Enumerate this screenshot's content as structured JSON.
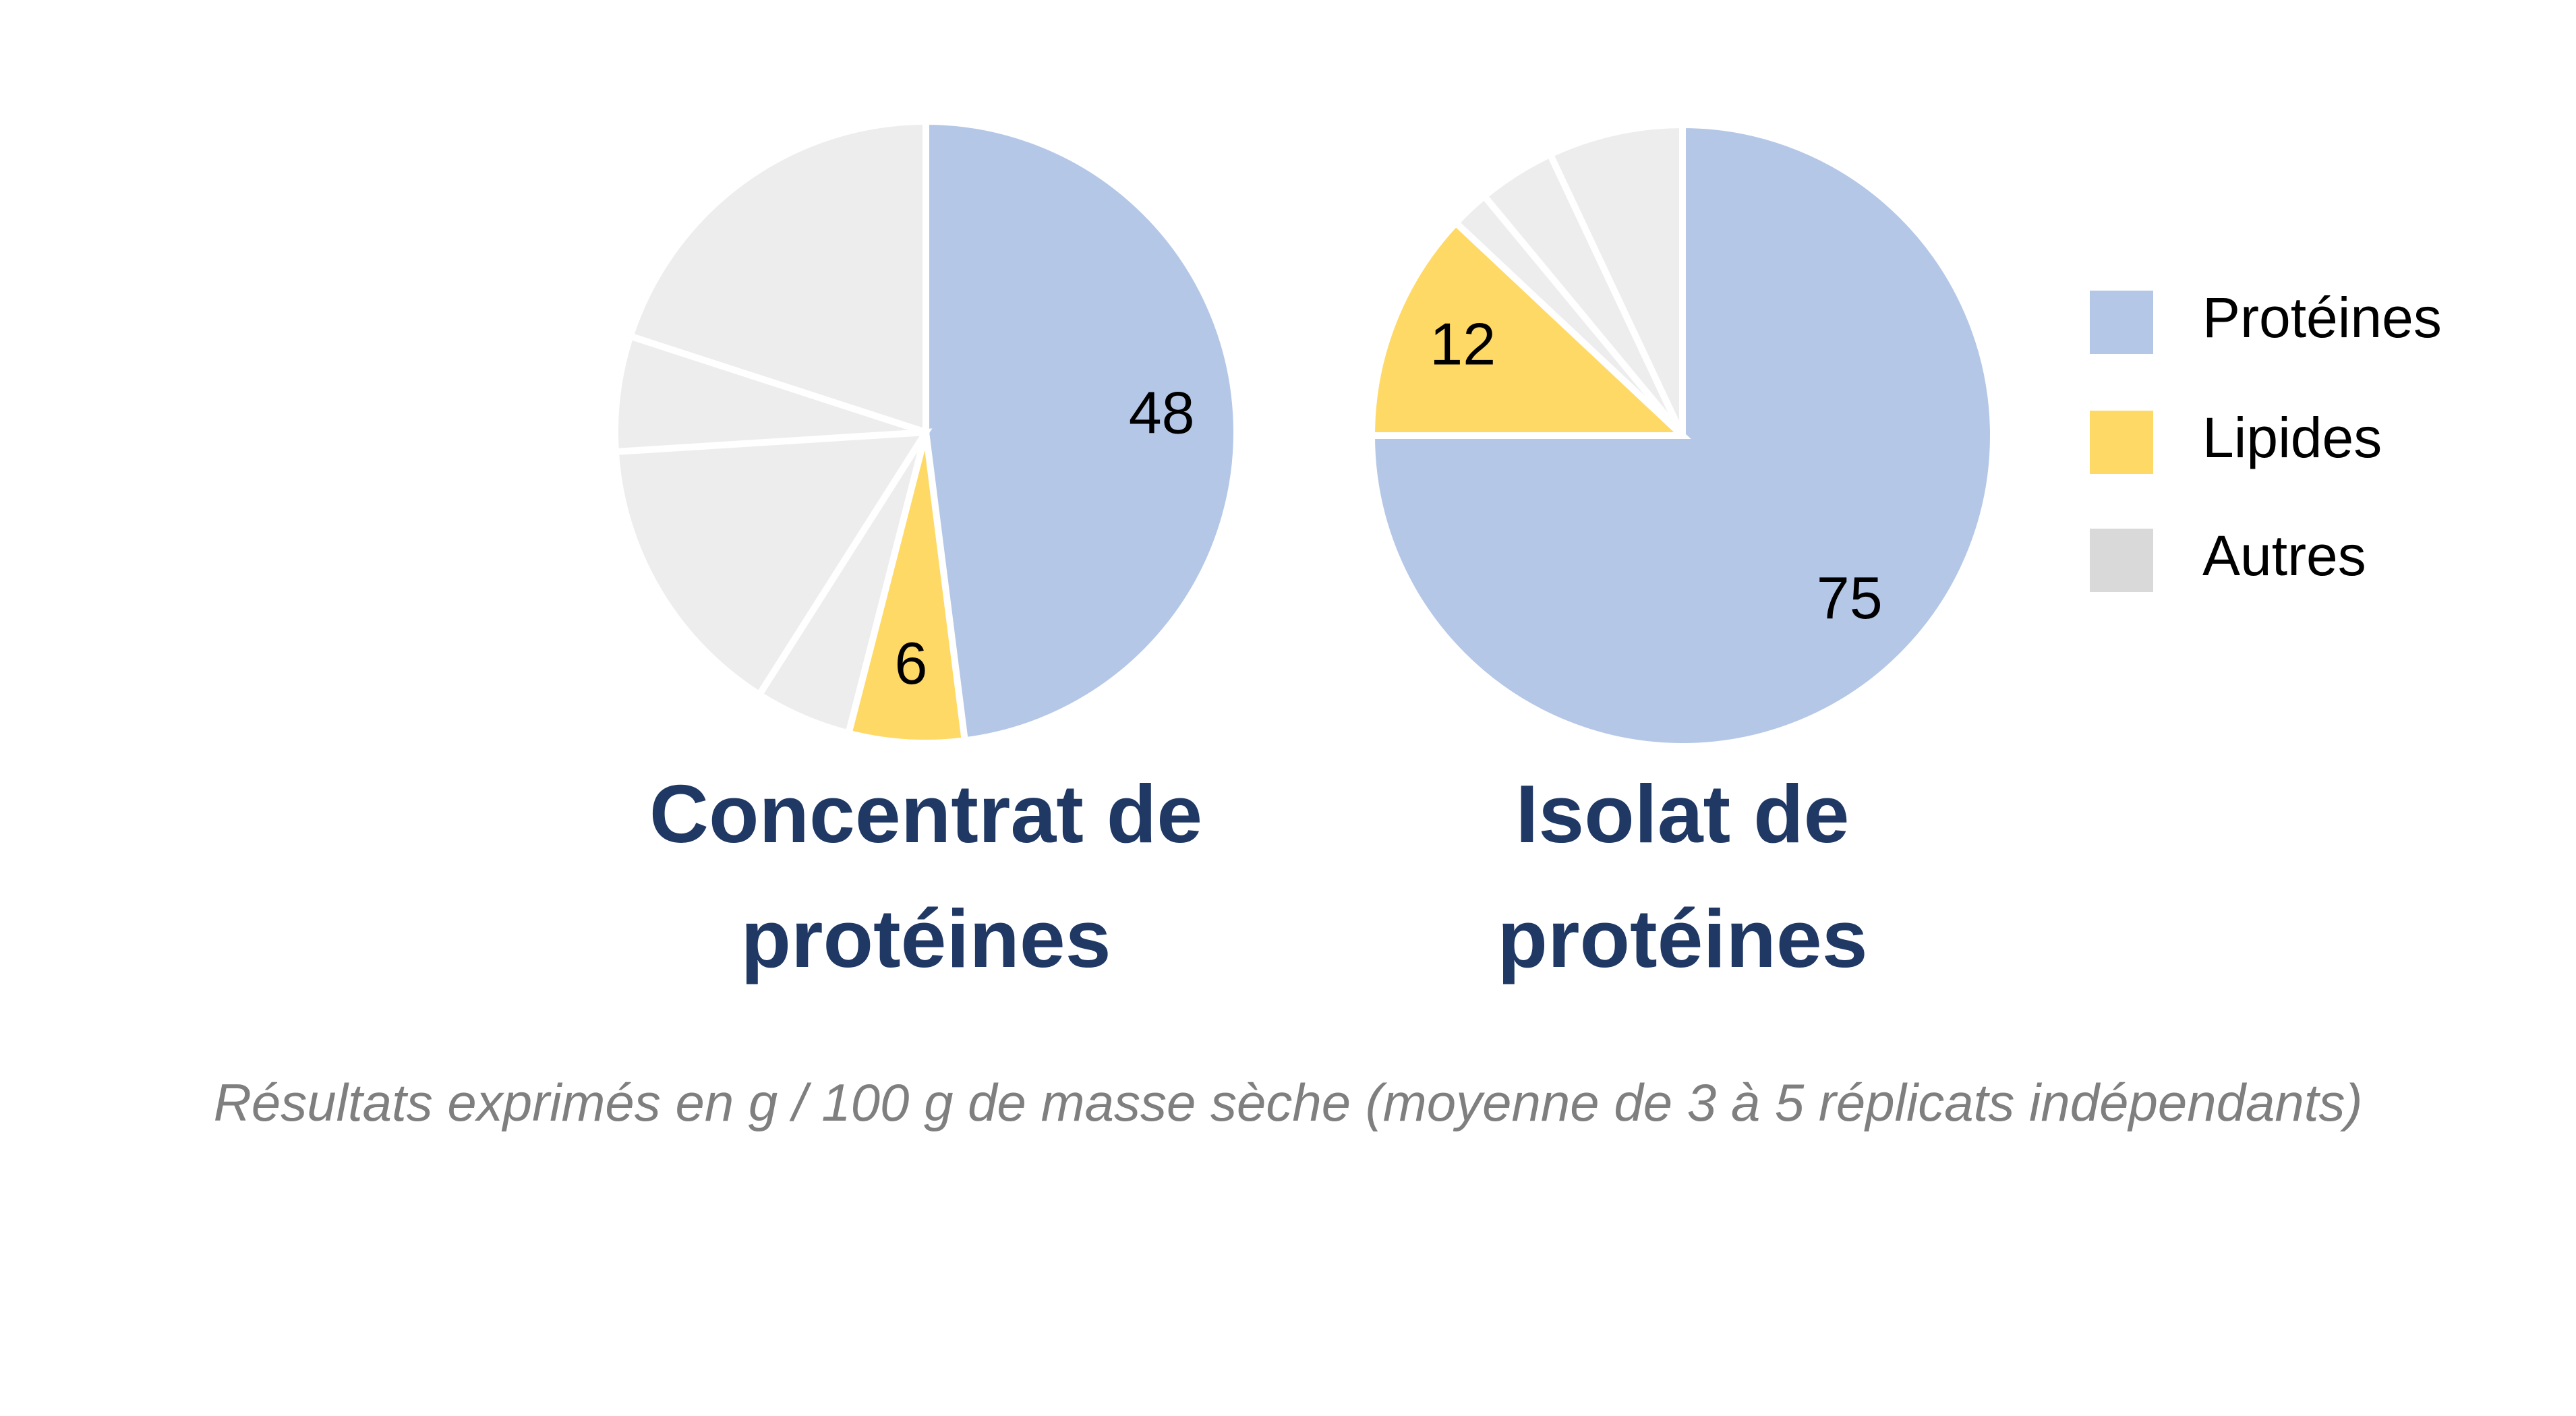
{
  "chart_data": [
    {
      "type": "pie",
      "title": "Concentrat de protéines",
      "categories": [
        "Protéines",
        "Lipides",
        null,
        null,
        null,
        null
      ],
      "values": [
        48,
        6,
        5,
        15,
        6,
        20
      ],
      "colors": [
        "#b4c7e7",
        "#ffd966",
        "#ededed",
        "#ededed",
        "#ededed",
        "#ededed"
      ]
    },
    {
      "type": "pie",
      "title": "Isolat de protéines",
      "categories": [
        "Protéines",
        "Lipides",
        null,
        null,
        null
      ],
      "values": [
        75,
        12,
        2,
        4,
        7
      ],
      "colors": [
        "#b4c7e7",
        "#ffd966",
        "#ededed",
        "#ededed",
        "#ededed"
      ]
    }
  ],
  "legend": [
    {
      "name": "Protéines",
      "color": "#b4c7e7"
    },
    {
      "name": "Lipides",
      "color": "#ffd966"
    },
    {
      "name": "Autres",
      "color": "#d9d9d9"
    }
  ],
  "note": "Résultats exprimés en g / 100 g de masse sèche (moyenne de 3 à 5 réplicats indépendants)"
}
